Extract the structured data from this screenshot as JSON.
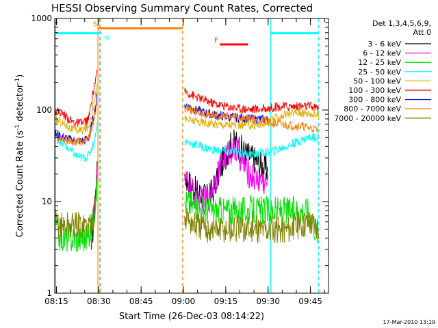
{
  "chart_data": {
    "type": "line",
    "title": "HESSI Observing Summary Count Rates, Corrected",
    "xlabel": "Start Time (26-Dec-03 08:14:22)",
    "ylabel": "Corrected Count Rate (s-1 detector-1)",
    "ylabel_parts": [
      "Corrected Count Rate (s",
      "-1",
      " detector",
      "-1",
      ")"
    ],
    "x_unit": "minutes after 08:14:22",
    "xlim": [
      0,
      97
    ],
    "ylim": [
      1,
      1000
    ],
    "yscale": "log",
    "x_ticks": [
      "08:15",
      "08:30",
      "08:45",
      "09:00",
      "09:15",
      "09:30",
      "09:45"
    ],
    "x_tick_minutes": [
      0.6,
      15.6,
      30.6,
      45.6,
      60.6,
      75.6,
      90.6
    ],
    "y_ticks": [
      "1",
      "10",
      "100",
      "1000"
    ],
    "y_tick_values": [
      1,
      10,
      100,
      1000
    ],
    "grid": false,
    "legend": {
      "title_lines": [
        "Det 1,3,4,5,6,9,",
        "Att 0"
      ],
      "placement": "right"
    },
    "series": [
      {
        "name": "3 - 6 keV",
        "color": "#000000",
        "x": [
          0,
          10,
          13,
          14,
          15,
          45,
          46,
          47,
          50,
          54,
          56,
          58,
          60,
          62,
          64,
          66,
          68,
          70,
          72,
          74,
          75.5
        ],
        "y": [
          null,
          null,
          3,
          8,
          20,
          null,
          20,
          17,
          13,
          11,
          13,
          20,
          30,
          40,
          45,
          38,
          33,
          30,
          27,
          24,
          22
        ]
      },
      {
        "name": "6 - 12 keV",
        "color": "#ff00ff",
        "x": [
          0,
          14,
          15,
          45,
          46,
          48,
          50,
          53,
          55,
          57,
          59,
          61,
          63,
          65,
          67,
          69,
          71,
          73,
          75.5
        ],
        "y": [
          null,
          8,
          20,
          null,
          17,
          14,
          11,
          10,
          12,
          18,
          26,
          32,
          38,
          34,
          25,
          20,
          18,
          17,
          16
        ]
      },
      {
        "name": "12 - 25 keV",
        "color": "#00e000",
        "x": [
          0,
          2,
          4,
          6,
          8,
          10,
          12,
          13,
          14,
          15,
          45,
          46,
          50,
          55,
          60,
          65,
          70,
          75,
          80,
          85,
          90,
          93.5
        ],
        "y": [
          6,
          4,
          4,
          4,
          4,
          4,
          4,
          5,
          8,
          15,
          null,
          10,
          9,
          8,
          8,
          8,
          8,
          8,
          8,
          8,
          8,
          4.2
        ]
      },
      {
        "name": "25 - 50 keV",
        "color": "#00ffff",
        "x": [
          0,
          2,
          4,
          6,
          8,
          10,
          12,
          14,
          15,
          45,
          46,
          50,
          54,
          58,
          62,
          66,
          70,
          74,
          78,
          82,
          86,
          90,
          93.5
        ],
        "y": [
          50,
          45,
          40,
          35,
          31,
          30,
          32,
          45,
          70,
          null,
          45,
          42,
          38,
          36,
          35,
          34,
          33,
          34,
          36,
          40,
          45,
          50,
          52
        ]
      },
      {
        "name": "50 - 100 keV",
        "color": "#e0b000",
        "x": [
          0,
          2,
          4,
          6,
          8,
          10,
          12,
          14,
          15,
          45,
          46,
          50,
          54,
          58,
          62,
          66,
          70,
          74,
          78,
          82,
          86,
          90,
          93.5
        ],
        "y": [
          80,
          75,
          68,
          62,
          60,
          60,
          65,
          120,
          180,
          null,
          80,
          75,
          72,
          70,
          69,
          68,
          68,
          70,
          80,
          90,
          95,
          92,
          88
        ]
      },
      {
        "name": "100 - 300 keV",
        "color": "#ff0000",
        "x": [
          0,
          2,
          4,
          6,
          8,
          10,
          12,
          14,
          15,
          45,
          46,
          50,
          54,
          58,
          62,
          66,
          70,
          74,
          78,
          82,
          86,
          90,
          93.5
        ],
        "y": [
          100,
          95,
          85,
          75,
          72,
          72,
          80,
          180,
          260,
          null,
          160,
          140,
          125,
          115,
          108,
          104,
          102,
          103,
          108,
          110,
          110,
          110,
          105
        ]
      },
      {
        "name": "300 - 800 keV",
        "color": "#0000ff",
        "x": [
          0,
          2,
          4,
          6,
          8,
          10,
          12,
          14,
          15,
          45,
          46,
          50,
          54,
          58,
          62,
          66,
          70,
          74,
          75.5
        ],
        "y": [
          55,
          52,
          49,
          47,
          46,
          46,
          50,
          90,
          140,
          null,
          115,
          100,
          92,
          87,
          84,
          82,
          80,
          79,
          78
        ]
      },
      {
        "name": "800 - 7000 keV",
        "color": "#ff8000",
        "x": [
          0,
          2,
          4,
          6,
          8,
          10,
          12,
          14,
          15,
          45,
          46,
          50,
          54,
          58,
          62,
          66,
          70,
          74,
          76,
          80,
          84,
          88,
          92,
          93.5
        ],
        "y": [
          50,
          50,
          48,
          46,
          45,
          45,
          48,
          80,
          110,
          null,
          105,
          95,
          90,
          86,
          84,
          82,
          80,
          78,
          72,
          70,
          68,
          66,
          62,
          60
        ]
      },
      {
        "name": "7000 - 20000 keV",
        "color": "#808000",
        "x": [
          0,
          2,
          4,
          6,
          8,
          10,
          12,
          13,
          14,
          45,
          46,
          48,
          50,
          54,
          58,
          62,
          66,
          70,
          74,
          78,
          82,
          86,
          90,
          93.5
        ],
        "y": [
          6,
          5.5,
          5.5,
          5.5,
          5.5,
          5.5,
          5.5,
          6,
          8,
          null,
          7,
          6,
          5.5,
          5,
          5,
          5,
          5,
          5,
          5,
          5,
          5,
          5.5,
          6,
          5.5
        ]
      }
    ],
    "vertical_lines": [
      {
        "minute": 0.3,
        "color": "#00ffff",
        "style": "solid"
      },
      {
        "minute": 16.2,
        "color": "#00ffff",
        "style": "dashed"
      },
      {
        "minute": 15.3,
        "color": "#ff8000",
        "style": "solid"
      },
      {
        "minute": 16.0,
        "color": "#ff8000",
        "style": "dashed"
      },
      {
        "minute": 45.3,
        "color": "#ff8000",
        "style": "dashed"
      },
      {
        "minute": 76.5,
        "color": "#00ffff",
        "style": "solid"
      },
      {
        "minute": 93.5,
        "color": "#00ffff",
        "style": "dashed"
      }
    ],
    "flag_bars": [
      {
        "label": "S",
        "color": "#ff8000",
        "start": 15.5,
        "end": 45.3,
        "y_value": 780,
        "label_at": "start"
      },
      {
        "label": "N",
        "color": "#00ffff",
        "start": 0.3,
        "end": 16.5,
        "y_value": 690,
        "label_at": "end"
      },
      {
        "label": "N",
        "color": "#00ffff",
        "start": 76.5,
        "end": 93.5,
        "y_value": 690,
        "label_at": "none"
      },
      {
        "label": "F",
        "color": "#ff0000",
        "start": 58.5,
        "end": 68.5,
        "y_value": 520,
        "label_at": "start"
      }
    ]
  },
  "footer": {
    "timestamp": "17-Mar-2010 13:19"
  }
}
